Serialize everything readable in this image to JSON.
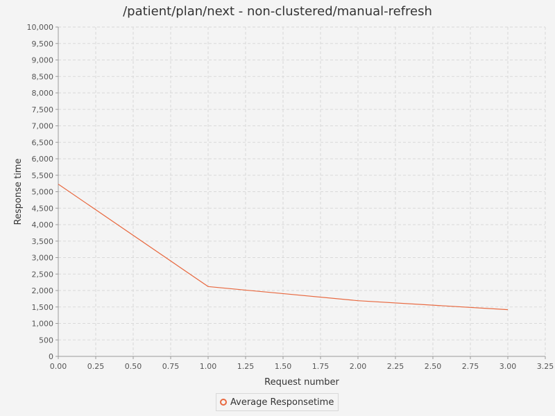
{
  "chart_data": {
    "type": "line",
    "title": "/patient/plan/next - non-clustered/manual-refresh",
    "xlabel": "Request number",
    "ylabel": "Response time",
    "xlim": [
      0,
      3.25
    ],
    "ylim": [
      0,
      10000
    ],
    "x_ticks": [
      0,
      0.25,
      0.5,
      0.75,
      1.0,
      1.25,
      1.5,
      1.75,
      2.0,
      2.25,
      2.5,
      2.75,
      3.0,
      3.25
    ],
    "x_tick_labels": [
      "0.00",
      "0.25",
      "0.50",
      "0.75",
      "1.00",
      "1.25",
      "1.50",
      "1.75",
      "2.00",
      "2.25",
      "2.50",
      "2.75",
      "3.00",
      "3.25"
    ],
    "y_ticks": [
      0,
      500,
      1000,
      1500,
      2000,
      2500,
      3000,
      3500,
      4000,
      4500,
      5000,
      5500,
      6000,
      6500,
      7000,
      7500,
      8000,
      8500,
      9000,
      9500,
      10000
    ],
    "y_tick_labels": [
      "0",
      "500",
      "1,000",
      "1,500",
      "2,000",
      "2,500",
      "3,000",
      "3,500",
      "4,000",
      "4,500",
      "5,000",
      "5,500",
      "6,000",
      "6,500",
      "7,000",
      "7,500",
      "8,000",
      "8,500",
      "9,000",
      "9,500",
      "10,000"
    ],
    "grid": true,
    "legend_position": "bottom",
    "series": [
      {
        "name": "Average Responsetime",
        "color": "#e8683f",
        "x": [
          0,
          1,
          2,
          3
        ],
        "y": [
          5230,
          2120,
          1690,
          1420
        ]
      }
    ]
  }
}
